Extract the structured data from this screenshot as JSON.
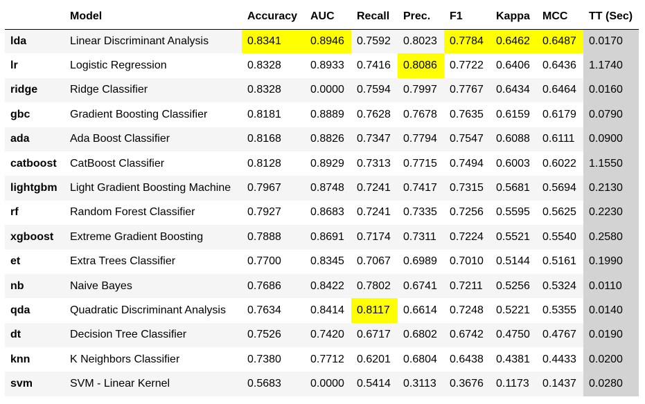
{
  "columns": [
    "",
    "Model",
    "Accuracy",
    "AUC",
    "Recall",
    "Prec.",
    "F1",
    "Kappa",
    "MCC",
    "TT (Sec)"
  ],
  "rows": [
    {
      "id": "lda",
      "model": "Linear Discriminant Analysis",
      "values": [
        "0.8341",
        "0.8946",
        "0.7592",
        "0.8023",
        "0.7784",
        "0.6462",
        "0.6487",
        "0.0170"
      ]
    },
    {
      "id": "lr",
      "model": "Logistic Regression",
      "values": [
        "0.8328",
        "0.8933",
        "0.7416",
        "0.8086",
        "0.7722",
        "0.6406",
        "0.6436",
        "1.1740"
      ]
    },
    {
      "id": "ridge",
      "model": "Ridge Classifier",
      "values": [
        "0.8328",
        "0.0000",
        "0.7594",
        "0.7997",
        "0.7767",
        "0.6434",
        "0.6464",
        "0.0160"
      ]
    },
    {
      "id": "gbc",
      "model": "Gradient Boosting Classifier",
      "values": [
        "0.8181",
        "0.8889",
        "0.7628",
        "0.7678",
        "0.7635",
        "0.6159",
        "0.6179",
        "0.0790"
      ]
    },
    {
      "id": "ada",
      "model": "Ada Boost Classifier",
      "values": [
        "0.8168",
        "0.8826",
        "0.7347",
        "0.7794",
        "0.7547",
        "0.6088",
        "0.6111",
        "0.0900"
      ]
    },
    {
      "id": "catboost",
      "model": "CatBoost Classifier",
      "values": [
        "0.8128",
        "0.8929",
        "0.7313",
        "0.7715",
        "0.7494",
        "0.6003",
        "0.6022",
        "1.1550"
      ]
    },
    {
      "id": "lightgbm",
      "model": "Light Gradient Boosting Machine",
      "values": [
        "0.7967",
        "0.8748",
        "0.7241",
        "0.7417",
        "0.7315",
        "0.5681",
        "0.5694",
        "0.2130"
      ]
    },
    {
      "id": "rf",
      "model": "Random Forest Classifier",
      "values": [
        "0.7927",
        "0.8683",
        "0.7241",
        "0.7335",
        "0.7256",
        "0.5595",
        "0.5625",
        "0.2230"
      ]
    },
    {
      "id": "xgboost",
      "model": "Extreme Gradient Boosting",
      "values": [
        "0.7888",
        "0.8691",
        "0.7174",
        "0.7311",
        "0.7224",
        "0.5521",
        "0.5540",
        "0.2580"
      ]
    },
    {
      "id": "et",
      "model": "Extra Trees Classifier",
      "values": [
        "0.7700",
        "0.8345",
        "0.7067",
        "0.6989",
        "0.7010",
        "0.5144",
        "0.5161",
        "0.1990"
      ]
    },
    {
      "id": "nb",
      "model": "Naive Bayes",
      "values": [
        "0.7686",
        "0.8422",
        "0.7802",
        "0.6741",
        "0.7211",
        "0.5256",
        "0.5324",
        "0.0110"
      ]
    },
    {
      "id": "qda",
      "model": "Quadratic Discriminant Analysis",
      "values": [
        "0.7634",
        "0.8414",
        "0.8117",
        "0.6614",
        "0.7248",
        "0.5221",
        "0.5355",
        "0.0140"
      ]
    },
    {
      "id": "dt",
      "model": "Decision Tree Classifier",
      "values": [
        "0.7526",
        "0.7420",
        "0.6717",
        "0.6802",
        "0.6742",
        "0.4750",
        "0.4767",
        "0.0190"
      ]
    },
    {
      "id": "knn",
      "model": "K Neighbors Classifier",
      "values": [
        "0.7380",
        "0.7712",
        "0.6201",
        "0.6804",
        "0.6438",
        "0.4381",
        "0.4433",
        "0.0200"
      ]
    },
    {
      "id": "svm",
      "model": "SVM - Linear Kernel",
      "values": [
        "0.5683",
        "0.0000",
        "0.5414",
        "0.3113",
        "0.3676",
        "0.1173",
        "0.1437",
        "0.0280"
      ]
    }
  ],
  "highlights": {
    "lda": [
      0,
      1,
      4,
      5,
      6
    ],
    "lr": [
      3
    ],
    "qda": [
      2
    ]
  },
  "colors": {
    "highlight": "#ffff00",
    "tt_column": "#d3d3d3",
    "row_stripe": "#f5f5f5"
  }
}
